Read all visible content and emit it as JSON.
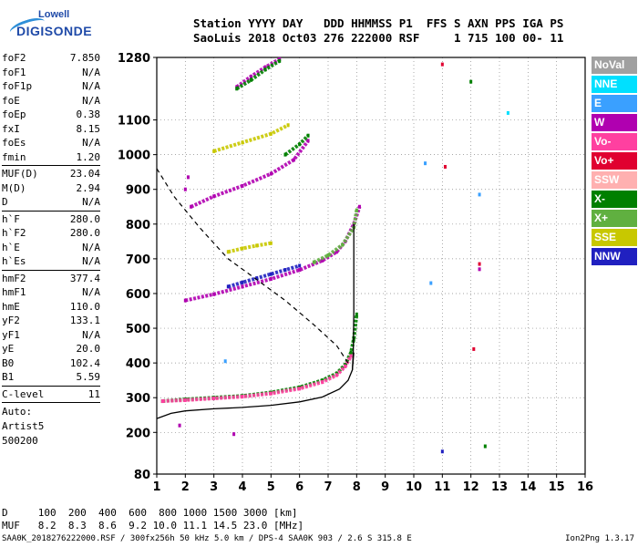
{
  "logo": {
    "line1": "Lowell",
    "line2": "DIGISONDE"
  },
  "header": {
    "line1": "Station YYYY DAY   DDD HHMMSS P1  FFS S AXN PPS IGA PS",
    "line2": "SaoLuis 2018 Oct03 276 222000 RSF     1 715 100 00- 11"
  },
  "params": [
    {
      "group": [
        {
          "name": "foF2",
          "value": "7.850"
        },
        {
          "name": "foF1",
          "value": "N/A"
        },
        {
          "name": "foF1p",
          "value": "N/A"
        },
        {
          "name": "foE",
          "value": "N/A"
        },
        {
          "name": "foEp",
          "value": "0.38"
        },
        {
          "name": "fxI",
          "value": "8.15"
        },
        {
          "name": "foEs",
          "value": "N/A"
        },
        {
          "name": "fmin",
          "value": "1.20"
        }
      ]
    },
    {
      "group": [
        {
          "name": "MUF(D)",
          "value": "23.04"
        },
        {
          "name": "M(D)",
          "value": "2.94"
        },
        {
          "name": "D",
          "value": "N/A"
        }
      ]
    },
    {
      "group": [
        {
          "name": "h`F",
          "value": "280.0"
        },
        {
          "name": "h`F2",
          "value": "280.0"
        },
        {
          "name": "h`E",
          "value": "N/A"
        },
        {
          "name": "h`Es",
          "value": "N/A"
        }
      ]
    },
    {
      "group": [
        {
          "name": "hmF2",
          "value": "377.4"
        },
        {
          "name": "hmF1",
          "value": "N/A"
        },
        {
          "name": "hmE",
          "value": "110.0"
        },
        {
          "name": "yF2",
          "value": "133.1"
        },
        {
          "name": "yF1",
          "value": "N/A"
        },
        {
          "name": "yE",
          "value": "20.0"
        },
        {
          "name": "B0",
          "value": "102.4"
        },
        {
          "name": "B1",
          "value": "5.59"
        }
      ]
    },
    {
      "group": [
        {
          "name": "C-level",
          "value": "11"
        }
      ]
    }
  ],
  "auto_lines": [
    "Auto:",
    "Artist5",
    "500200"
  ],
  "bottom": {
    "line1": "D     100  200  400  600  800 1000 1500 3000 [km]",
    "line2": "MUF   8.2  8.3  8.6  9.2 10.0 11.1 14.5 23.0 [MHz]"
  },
  "footer": {
    "left": "SAA0K_2018276222000.RSF / 300fx256h 50 kHz 5.0 km / DPS-4 SAA0K 903 / 2.6 S 315.8 E",
    "right": "Ion2Png 1.3.17"
  },
  "legend": [
    {
      "label": "NoVal",
      "color": "#a0a0a0"
    },
    {
      "label": "NNE",
      "color": "#00e0ff"
    },
    {
      "label": "E",
      "color": "#3aa0ff"
    },
    {
      "label": "W",
      "color": "#b000b0"
    },
    {
      "label": "Vo-",
      "color": "#ff40a0"
    },
    {
      "label": "Vo+",
      "color": "#e00030"
    },
    {
      "label": "SSW",
      "color": "#ffb0b0"
    },
    {
      "label": "X-",
      "color": "#008000"
    },
    {
      "label": "X+",
      "color": "#60b040"
    },
    {
      "label": "SSE",
      "color": "#c8c800"
    },
    {
      "label": "NNW",
      "color": "#2020c0"
    }
  ],
  "chart_data": {
    "type": "scatter",
    "title": "",
    "xlabel": "",
    "ylabel": "",
    "xlim": [
      1,
      16
    ],
    "ylim": [
      80,
      1280
    ],
    "x_ticks": [
      "1",
      "2",
      "3",
      "4",
      "5",
      "6",
      "7",
      "8",
      "9",
      "10",
      "11",
      "12",
      "13",
      "14",
      "15",
      "16"
    ],
    "y_ticks": [
      "80",
      "200",
      "300",
      "400",
      "500",
      "600",
      "700",
      "800",
      "900",
      "1000",
      "1100",
      "1280"
    ],
    "grid": true,
    "series": [
      {
        "name": "X-",
        "color": "#008000",
        "kind": "trace",
        "x": [
          1.2,
          2.0,
          3.0,
          4.0,
          5.0,
          6.0,
          6.8,
          7.3,
          7.6,
          7.8,
          7.9,
          8.0
        ],
        "y": [
          290,
          295,
          300,
          305,
          315,
          330,
          350,
          370,
          395,
          430,
          470,
          540
        ]
      },
      {
        "name": "Vo-",
        "color": "#ff40a0",
        "kind": "trace",
        "x": [
          1.2,
          2.0,
          3.0,
          4.0,
          5.0,
          6.0,
          6.8,
          7.3,
          7.6,
          7.8
        ],
        "y": [
          290,
          293,
          298,
          303,
          312,
          326,
          345,
          365,
          390,
          420
        ]
      },
      {
        "name": "W",
        "color": "#b000b0",
        "kind": "trace",
        "x": [
          2.0,
          3.0,
          4.0,
          5.0,
          6.0,
          6.8,
          7.3,
          7.6,
          7.9,
          8.1
        ],
        "y": [
          580,
          598,
          620,
          642,
          668,
          695,
          720,
          750,
          800,
          850
        ]
      },
      {
        "name": "NNW",
        "color": "#2020c0",
        "kind": "trace",
        "x": [
          3.5,
          4.0,
          4.5,
          5.0,
          5.5,
          6.0
        ],
        "y": [
          620,
          632,
          644,
          656,
          668,
          680
        ]
      },
      {
        "name": "X+",
        "color": "#60b040",
        "kind": "trace",
        "x": [
          6.5,
          7.0,
          7.5,
          7.9,
          8.0
        ],
        "y": [
          690,
          710,
          740,
          790,
          840
        ]
      },
      {
        "name": "W-2hop",
        "color": "#b000b0",
        "kind": "trace",
        "x": [
          2.2,
          3.0,
          4.0,
          5.0,
          5.8,
          6.3
        ],
        "y": [
          850,
          880,
          910,
          945,
          985,
          1040
        ]
      },
      {
        "name": "X-2hop",
        "color": "#008000",
        "kind": "trace",
        "x": [
          5.5,
          6.0,
          6.3
        ],
        "y": [
          1000,
          1030,
          1055
        ]
      },
      {
        "name": "SSE",
        "color": "#c8c800",
        "kind": "trace",
        "x": [
          3.0,
          4.0,
          5.0,
          5.6
        ],
        "y": [
          1010,
          1035,
          1060,
          1085
        ]
      },
      {
        "name": "SSE-low",
        "color": "#c8c800",
        "kind": "trace",
        "x": [
          3.5,
          4.0,
          4.5,
          5.0
        ],
        "y": [
          720,
          730,
          738,
          745
        ]
      },
      {
        "name": "W-3hop",
        "color": "#b000b0",
        "kind": "trace",
        "x": [
          3.8,
          4.3,
          4.8,
          5.3
        ],
        "y": [
          1195,
          1225,
          1252,
          1275
        ]
      },
      {
        "name": "X-3hop",
        "color": "#008000",
        "kind": "trace",
        "x": [
          3.8,
          4.3,
          4.8,
          5.3
        ],
        "y": [
          1190,
          1215,
          1245,
          1270
        ]
      },
      {
        "name": "profile",
        "color": "#000000",
        "kind": "line",
        "x": [
          1.0,
          1.5,
          2.0,
          3.0,
          4.0,
          5.0,
          6.0,
          6.8,
          7.4,
          7.7,
          7.85,
          7.9
        ],
        "y": [
          240,
          255,
          262,
          268,
          272,
          278,
          288,
          302,
          325,
          350,
          380,
          430
        ]
      },
      {
        "name": "profile-vert",
        "color": "#000000",
        "kind": "line",
        "x": [
          7.85,
          7.88,
          7.9,
          7.9
        ],
        "y": [
          380,
          430,
          550,
          800
        ]
      },
      {
        "name": "dashed",
        "color": "#000000",
        "kind": "dashed",
        "x": [
          1.0,
          1.6,
          2.5,
          3.5,
          4.5,
          5.5,
          6.5,
          7.3,
          7.7
        ],
        "y": [
          960,
          880,
          790,
          700,
          640,
          580,
          510,
          450,
          400
        ]
      }
    ],
    "scatter_points": [
      {
        "x": 11.0,
        "y": 1260,
        "color": "#e00030"
      },
      {
        "x": 12.0,
        "y": 1210,
        "color": "#008000"
      },
      {
        "x": 13.3,
        "y": 1120,
        "color": "#00e0ff"
      },
      {
        "x": 10.4,
        "y": 975,
        "color": "#3aa0ff"
      },
      {
        "x": 11.1,
        "y": 965,
        "color": "#e00030"
      },
      {
        "x": 12.3,
        "y": 885,
        "color": "#3aa0ff"
      },
      {
        "x": 12.3,
        "y": 685,
        "color": "#e00030"
      },
      {
        "x": 12.3,
        "y": 670,
        "color": "#b000b0"
      },
      {
        "x": 10.6,
        "y": 630,
        "color": "#3aa0ff"
      },
      {
        "x": 12.1,
        "y": 440,
        "color": "#e00030"
      },
      {
        "x": 11.0,
        "y": 145,
        "color": "#2020c0"
      },
      {
        "x": 12.5,
        "y": 160,
        "color": "#008000"
      },
      {
        "x": 1.8,
        "y": 220,
        "color": "#b000b0"
      },
      {
        "x": 3.7,
        "y": 195,
        "color": "#b000b0"
      },
      {
        "x": 3.4,
        "y": 405,
        "color": "#3aa0ff"
      },
      {
        "x": 2.0,
        "y": 900,
        "color": "#b000b0"
      },
      {
        "x": 2.1,
        "y": 935,
        "color": "#b000b0"
      }
    ]
  }
}
